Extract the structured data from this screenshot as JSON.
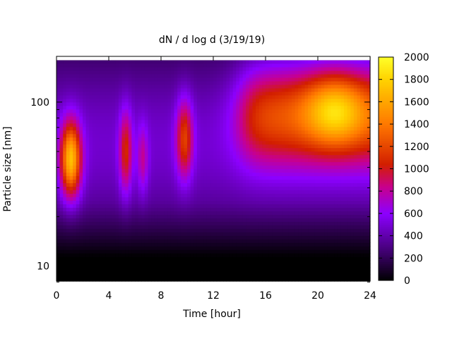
{
  "chart_data": {
    "type": "heatmap",
    "title": "dN / d log d (3/19/19)",
    "xlabel": "Time [hour]",
    "ylabel": "Particle size [nm]",
    "xlim": [
      0,
      24
    ],
    "ylim": [
      8.1,
      190
    ],
    "y_scale": "log",
    "x_ticks": [
      0,
      4,
      8,
      12,
      16,
      20,
      24
    ],
    "x_tick_labels": [
      "0",
      "4",
      "8",
      "12",
      "16",
      "20",
      "24"
    ],
    "y_ticks": [
      10,
      100
    ],
    "y_tick_labels": [
      "10",
      "100"
    ],
    "colorbar": {
      "range": [
        0,
        2000
      ],
      "ticks": [
        0,
        200,
        400,
        600,
        800,
        1000,
        1200,
        1400,
        1600,
        1800,
        2000
      ],
      "tick_labels": [
        "0",
        "200",
        "400",
        "600",
        "800",
        "1000",
        "1200",
        "1400",
        "1600",
        "1800",
        "2000"
      ],
      "colormap": "black-purple-red-orange-yellow",
      "colors": [
        "#000000",
        "#4a0082",
        "#8c00ff",
        "#c8008c",
        "#d21e00",
        "#ff7800",
        "#ffd200",
        "#ffff28"
      ]
    },
    "grid": false,
    "legend": "none",
    "features": [
      {
        "time_center": 1.1,
        "size_center_nm": 45,
        "peak": 1750
      },
      {
        "time_center": 5.3,
        "size_center_nm": 50,
        "peak": 1050
      },
      {
        "time_center": 6.6,
        "size_center_nm": 45,
        "peak": 800
      },
      {
        "time_center": 9.8,
        "size_center_nm": 60,
        "peak": 1150
      },
      {
        "time_center": 21.3,
        "size_center_nm": 90,
        "peak": 1850
      }
    ]
  }
}
